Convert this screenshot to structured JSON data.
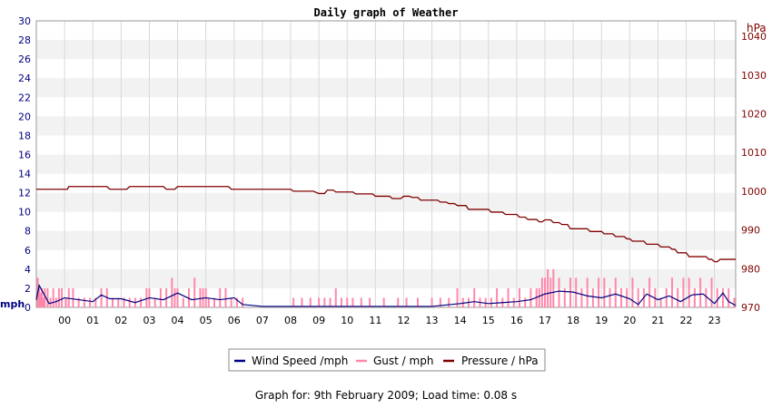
{
  "colors": {
    "wind": "#000080",
    "gust": "#ff88aa",
    "pressure": "#800000",
    "left_axis_text": "#000080",
    "right_axis_text": "#800000",
    "band": "#f2f2f2",
    "grid": "#d8d8d8"
  },
  "chart_data": {
    "type": "line",
    "title": "Daily graph of Weather",
    "left_axis": {
      "unit": "mph",
      "range": [
        0,
        30
      ],
      "ticks": [
        "0",
        "2",
        "4",
        "6",
        "8",
        "10",
        "12",
        "14",
        "16",
        "18",
        "20",
        "22",
        "24",
        "26",
        "28",
        "30"
      ]
    },
    "right_axis": {
      "unit": "hPa",
      "range": [
        970,
        1044
      ],
      "ticks": [
        "970",
        "980",
        "990",
        "1000",
        "1010",
        "1020",
        "1030",
        "1040"
      ]
    },
    "x_axis": {
      "range": [
        -1.0,
        23.75
      ],
      "ticks": [
        "00",
        "01",
        "02",
        "03",
        "04",
        "05",
        "06",
        "07",
        "08",
        "09",
        "10",
        "11",
        "12",
        "13",
        "14",
        "15",
        "16",
        "17",
        "18",
        "19",
        "20",
        "21",
        "22",
        "23"
      ]
    },
    "grid": true,
    "legend_position": "bottom",
    "series": [
      {
        "name": "Wind Speed /mph",
        "axis": "left",
        "x": [
          -1.0,
          -0.9,
          -0.75,
          -0.55,
          -0.3,
          0.0,
          0.5,
          1.0,
          1.3,
          1.6,
          2.0,
          2.5,
          3.0,
          3.5,
          4.0,
          4.5,
          5.0,
          5.5,
          6.0,
          6.3,
          7.0,
          8.0,
          9.0,
          10.0,
          11.0,
          12.0,
          13.0,
          14.0,
          14.5,
          15.0,
          15.5,
          16.0,
          16.5,
          17.0,
          17.5,
          18.0,
          18.5,
          19.0,
          19.5,
          20.0,
          20.3,
          20.6,
          21.0,
          21.4,
          21.8,
          22.2,
          22.6,
          23.0,
          23.3,
          23.5,
          23.75
        ],
        "y": [
          0.8,
          2.3,
          1.5,
          0.4,
          0.6,
          1.0,
          0.8,
          0.6,
          1.3,
          0.9,
          0.9,
          0.5,
          1.0,
          0.8,
          1.5,
          0.8,
          1.0,
          0.8,
          1.0,
          0.3,
          0.1,
          0.1,
          0.1,
          0.1,
          0.1,
          0.1,
          0.1,
          0.4,
          0.6,
          0.4,
          0.5,
          0.6,
          0.8,
          1.4,
          1.7,
          1.6,
          1.2,
          1.0,
          1.4,
          0.9,
          0.3,
          1.4,
          0.8,
          1.2,
          0.6,
          1.3,
          1.4,
          0.4,
          1.5,
          0.6,
          0.2
        ]
      },
      {
        "name": "Gust / mph",
        "axis": "left",
        "x": [
          -0.95,
          -0.9,
          -0.85,
          -0.8,
          -0.75,
          -0.7,
          -0.6,
          -0.5,
          -0.4,
          -0.3,
          -0.2,
          -0.1,
          0.05,
          0.15,
          0.3,
          0.5,
          0.7,
          0.9,
          1.1,
          1.3,
          1.5,
          1.7,
          1.9,
          2.1,
          2.3,
          2.5,
          2.7,
          2.9,
          3.0,
          3.2,
          3.4,
          3.6,
          3.8,
          3.9,
          4.0,
          4.2,
          4.4,
          4.6,
          4.8,
          4.9,
          5.0,
          5.1,
          5.3,
          5.5,
          5.7,
          5.9,
          6.1,
          6.3,
          8.1,
          8.4,
          8.7,
          9.0,
          9.2,
          9.4,
          9.6,
          9.8,
          10.0,
          10.2,
          10.5,
          10.8,
          11.3,
          11.8,
          12.1,
          12.5,
          13.0,
          13.3,
          13.6,
          13.9,
          14.1,
          14.3,
          14.5,
          14.7,
          14.9,
          15.1,
          15.3,
          15.5,
          15.7,
          15.9,
          16.1,
          16.3,
          16.5,
          16.7,
          16.8,
          16.9,
          17.0,
          17.1,
          17.2,
          17.3,
          17.5,
          17.7,
          17.9,
          18.1,
          18.3,
          18.5,
          18.7,
          18.9,
          19.1,
          19.3,
          19.5,
          19.7,
          19.9,
          20.1,
          20.3,
          20.5,
          20.7,
          20.9,
          21.1,
          21.3,
          21.5,
          21.7,
          21.9,
          22.1,
          22.3,
          22.5,
          22.7,
          22.9,
          23.1,
          23.3,
          23.5,
          23.7
        ],
        "y": [
          3.1,
          2.0,
          1.5,
          2.0,
          1.0,
          2.0,
          2.0,
          1.0,
          2.0,
          1.0,
          2.0,
          2.0,
          1.0,
          2.0,
          2.0,
          1.0,
          1.0,
          1.0,
          1.0,
          2.0,
          2.0,
          1.0,
          1.0,
          1.0,
          1.0,
          1.0,
          1.0,
          2.0,
          2.0,
          1.0,
          2.0,
          2.0,
          3.1,
          2.0,
          2.0,
          1.0,
          2.0,
          3.1,
          2.0,
          2.0,
          2.0,
          1.0,
          1.0,
          2.0,
          2.0,
          1.0,
          1.0,
          1.0,
          1.0,
          1.0,
          1.0,
          1.0,
          1.0,
          1.0,
          2.0,
          1.0,
          1.0,
          1.0,
          1.0,
          1.0,
          1.0,
          1.0,
          1.0,
          1.0,
          1.0,
          1.0,
          1.0,
          2.0,
          1.0,
          1.0,
          2.0,
          1.0,
          1.0,
          1.0,
          2.0,
          1.0,
          2.0,
          1.0,
          2.0,
          1.0,
          2.0,
          2.0,
          2.0,
          3.1,
          3.1,
          4.0,
          3.1,
          4.0,
          3.1,
          2.0,
          3.1,
          3.1,
          2.0,
          3.1,
          2.0,
          3.1,
          3.1,
          2.0,
          3.1,
          2.0,
          2.0,
          3.1,
          2.0,
          2.0,
          3.1,
          2.0,
          1.0,
          2.0,
          3.1,
          2.0,
          3.1,
          3.1,
          2.0,
          3.1,
          2.0,
          3.1,
          2.0,
          2.0,
          2.0,
          1.0
        ]
      },
      {
        "name": "Pressure / hPa",
        "axis": "right",
        "x": [
          -1.0,
          0.1,
          0.15,
          1.5,
          1.6,
          2.2,
          2.3,
          3.5,
          3.6,
          3.9,
          4.0,
          5.0,
          5.8,
          5.9,
          7.0,
          8.0,
          8.1,
          8.8,
          9.0,
          9.2,
          9.3,
          9.5,
          9.6,
          10.2,
          10.3,
          10.9,
          11.0,
          11.5,
          11.6,
          11.9,
          12.0,
          12.2,
          12.3,
          12.5,
          12.6,
          13.2,
          13.3,
          13.5,
          13.6,
          13.8,
          13.9,
          14.2,
          14.3,
          15.0,
          15.1,
          15.5,
          15.6,
          16.0,
          16.1,
          16.3,
          16.4,
          16.7,
          16.8,
          16.9,
          17.0,
          17.2,
          17.3,
          17.5,
          17.6,
          17.8,
          17.9,
          18.5,
          18.6,
          19.0,
          19.1,
          19.4,
          19.5,
          19.8,
          19.9,
          20.0,
          20.1,
          20.5,
          20.6,
          21.0,
          21.1,
          21.4,
          21.5,
          21.6,
          21.7,
          22.0,
          22.1,
          22.7,
          22.8,
          22.9,
          23.0,
          23.1,
          23.2,
          23.75
        ],
        "y": [
          1000.5,
          1000.5,
          1001.2,
          1001.2,
          1000.5,
          1000.5,
          1001.2,
          1001.2,
          1000.5,
          1000.5,
          1001.2,
          1001.2,
          1001.2,
          1000.5,
          1000.5,
          1000.5,
          1000.0,
          1000.0,
          999.4,
          999.4,
          1000.3,
          1000.3,
          999.8,
          999.8,
          999.3,
          999.3,
          998.7,
          998.7,
          998.1,
          998.1,
          998.7,
          998.7,
          998.4,
          998.4,
          997.7,
          997.7,
          997.2,
          997.2,
          996.8,
          996.8,
          996.3,
          996.3,
          995.3,
          995.3,
          994.6,
          994.6,
          994.0,
          994.0,
          993.3,
          993.3,
          992.7,
          992.7,
          992.1,
          992.1,
          992.6,
          992.6,
          991.9,
          991.9,
          991.4,
          991.4,
          990.3,
          990.3,
          989.6,
          989.6,
          989.0,
          989.0,
          988.3,
          988.3,
          987.7,
          987.7,
          987.1,
          987.1,
          986.3,
          986.3,
          985.6,
          985.6,
          985.0,
          985.0,
          984.1,
          984.1,
          983.1,
          983.1,
          982.4,
          982.4,
          981.8,
          981.8,
          982.4,
          982.4
        ]
      }
    ]
  },
  "footer": {
    "caption": "Graph for: 9th February 2009; Load time: 0.08 s"
  }
}
